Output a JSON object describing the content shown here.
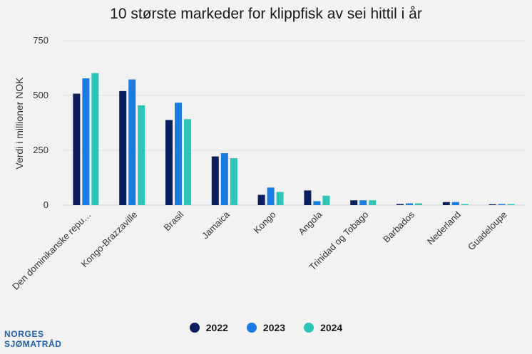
{
  "chart_data": {
    "type": "bar",
    "title": "10 største markeder for klippfisk av sei hittil i år",
    "ylabel": "Verdi i millioner NOK",
    "xlabel": "",
    "ylim": [
      0,
      750
    ],
    "yticks": [
      0,
      250,
      500,
      750
    ],
    "grid": true,
    "legend_position": "bottom",
    "categories": [
      "Den dominikanske repu…",
      "Kongo-Brazzaville",
      "Brasil",
      "Jamaica",
      "Kongo",
      "Angola",
      "Trinidad og Tobago",
      "Barbados",
      "Nederland",
      "Guadeloupe"
    ],
    "series": [
      {
        "name": "2022",
        "color": "#0b1f5c",
        "values": [
          508,
          520,
          388,
          222,
          47,
          67,
          22,
          5,
          14,
          4
        ]
      },
      {
        "name": "2023",
        "color": "#1a7ce0",
        "values": [
          578,
          573,
          467,
          237,
          80,
          18,
          22,
          8,
          14,
          5
        ]
      },
      {
        "name": "2024",
        "color": "#2ec4b6",
        "values": [
          602,
          455,
          392,
          214,
          60,
          43,
          22,
          8,
          5,
          5
        ]
      }
    ]
  },
  "logo": {
    "line1": "NORGES",
    "line2": "SJØMATRÅD"
  }
}
